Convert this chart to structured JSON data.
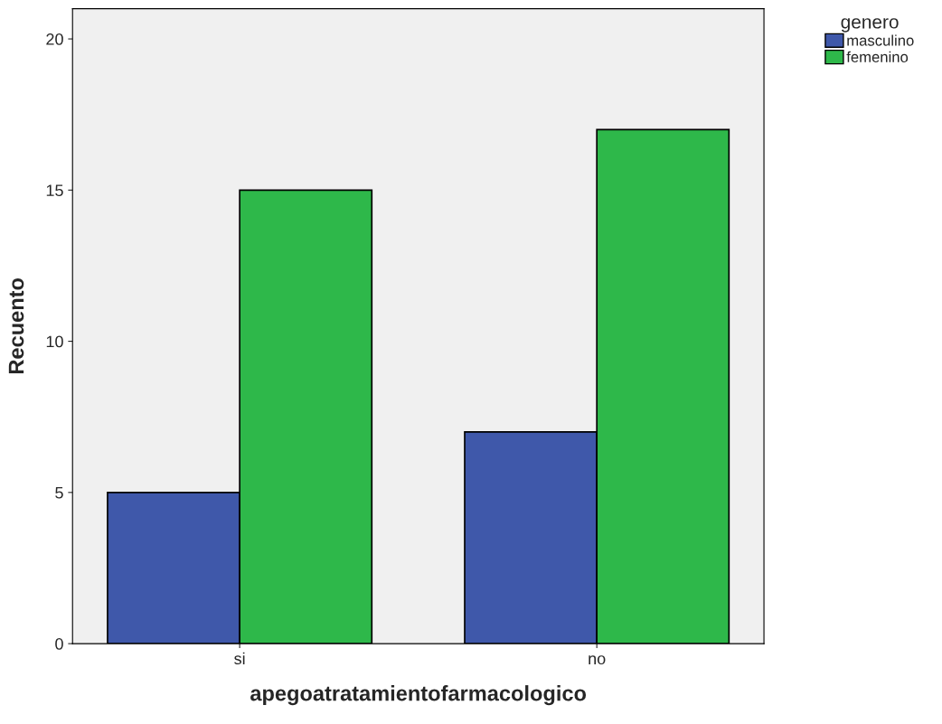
{
  "chart_data": {
    "type": "bar",
    "xlabel": "apegoatratamientofarmacologico",
    "ylabel": "Recuento",
    "legend_title": "genero",
    "categories": [
      "si",
      "no"
    ],
    "series": [
      {
        "name": "masculino",
        "color": "#3f58aa",
        "values": [
          5,
          7
        ]
      },
      {
        "name": "femenino",
        "color": "#2eb84a",
        "values": [
          15,
          17
        ]
      }
    ],
    "ylim": [
      0,
      21
    ],
    "yticks": [
      0,
      5,
      10,
      15,
      20
    ],
    "grid": false,
    "legend": "top right"
  }
}
